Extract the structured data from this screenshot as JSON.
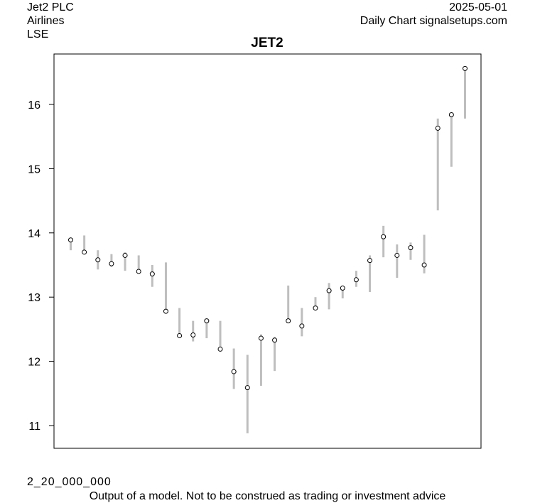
{
  "header": {
    "company": "Jet2 PLC",
    "sector": "Airlines",
    "exchange": "LSE",
    "date": "2025-05-01",
    "source": "Daily Chart signalsetups.com"
  },
  "footer": {
    "code": "2_20_000_000",
    "disclaimer": "Output of a model. Not to be construed as trading or investment advice"
  },
  "chart_data": {
    "type": "line",
    "title": "JET2",
    "xlabel": "",
    "ylabel": "",
    "ylim": [
      10.65,
      16.8
    ],
    "yticks": [
      11,
      12,
      13,
      14,
      15,
      16
    ],
    "grid": false,
    "range_color": "#bebebe",
    "series": [
      {
        "close": [
          13.89,
          13.7,
          13.58,
          13.52,
          13.65,
          13.4,
          13.36,
          12.78,
          12.4,
          12.41,
          12.63,
          12.19,
          11.84,
          11.59,
          12.36,
          12.33,
          12.63,
          12.55,
          12.83,
          13.1,
          13.14,
          13.27,
          13.57,
          13.94,
          13.65,
          13.77,
          13.5,
          15.63,
          15.84,
          16.56
        ],
        "high": [
          13.87,
          13.96,
          13.73,
          13.67,
          13.7,
          13.65,
          13.5,
          13.54,
          12.83,
          12.63,
          12.63,
          12.63,
          12.2,
          12.1,
          12.42,
          12.38,
          13.18,
          12.83,
          13.0,
          13.22,
          13.18,
          13.41,
          13.65,
          14.11,
          13.82,
          13.85,
          13.97,
          15.78,
          15.84,
          16.56
        ],
        "low": [
          13.73,
          13.7,
          13.43,
          13.47,
          13.41,
          13.4,
          13.16,
          12.78,
          12.4,
          12.31,
          12.36,
          12.19,
          11.57,
          10.88,
          11.62,
          11.85,
          12.63,
          12.39,
          12.83,
          12.81,
          12.98,
          13.16,
          13.08,
          13.62,
          13.3,
          13.58,
          13.37,
          14.35,
          15.03,
          15.78
        ]
      }
    ]
  }
}
